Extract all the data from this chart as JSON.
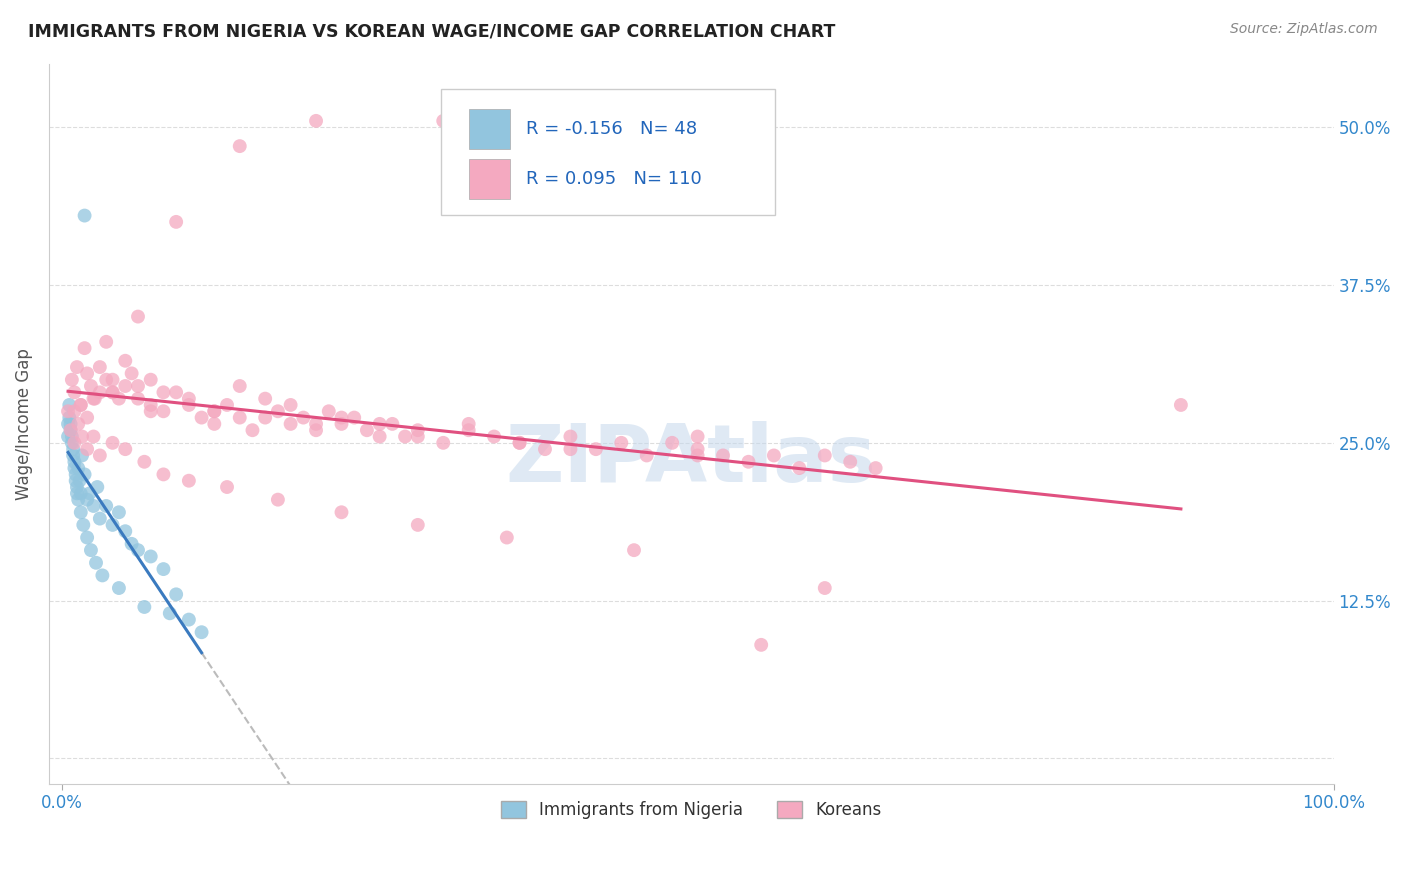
{
  "title": "IMMIGRANTS FROM NIGERIA VS KOREAN WAGE/INCOME GAP CORRELATION CHART",
  "source": "Source: ZipAtlas.com",
  "ylabel": "Wage/Income Gap",
  "R1": "-0.156",
  "N1": "48",
  "R2": "0.095",
  "N2": "110",
  "color_nigeria": "#92c5de",
  "color_korea": "#f4a9c0",
  "color_trendline_nigeria": "#3a7abf",
  "color_trendline_korea": "#e05080",
  "watermark": "ZIPAtlas",
  "legend_label1": "Immigrants from Nigeria",
  "legend_label2": "Koreans",
  "nigeria_x": [
    0.5,
    0.5,
    0.6,
    0.7,
    0.8,
    0.9,
    1.0,
    1.1,
    1.2,
    1.3,
    1.4,
    1.5,
    1.6,
    1.8,
    2.0,
    2.2,
    2.5,
    2.8,
    3.0,
    3.5,
    4.0,
    4.5,
    5.0,
    5.5,
    6.0,
    7.0,
    8.0,
    9.0,
    10.0,
    11.0,
    0.6,
    0.7,
    0.8,
    0.9,
    1.0,
    1.1,
    1.2,
    1.3,
    1.5,
    1.7,
    2.0,
    2.3,
    2.7,
    3.2,
    4.5,
    6.5,
    8.5,
    1.8
  ],
  "nigeria_y": [
    26.5,
    25.5,
    27.0,
    26.0,
    25.0,
    24.5,
    23.0,
    22.5,
    21.5,
    23.0,
    22.0,
    21.0,
    24.0,
    22.5,
    20.5,
    21.0,
    20.0,
    21.5,
    19.0,
    20.0,
    18.5,
    19.5,
    18.0,
    17.0,
    16.5,
    16.0,
    15.0,
    13.0,
    11.0,
    10.0,
    28.0,
    26.5,
    25.5,
    24.0,
    23.5,
    22.0,
    21.0,
    20.5,
    19.5,
    18.5,
    17.5,
    16.5,
    15.5,
    14.5,
    13.5,
    12.0,
    11.5,
    43.0
  ],
  "korea_x": [
    0.5,
    0.8,
    1.0,
    1.2,
    1.5,
    1.8,
    2.0,
    2.3,
    2.6,
    3.0,
    3.5,
    4.0,
    4.5,
    5.0,
    5.5,
    6.0,
    7.0,
    8.0,
    9.0,
    10.0,
    11.0,
    12.0,
    13.0,
    14.0,
    15.0,
    16.0,
    17.0,
    18.0,
    19.0,
    20.0,
    21.0,
    22.0,
    23.0,
    24.0,
    25.0,
    26.0,
    27.0,
    28.0,
    30.0,
    32.0,
    34.0,
    36.0,
    38.0,
    40.0,
    42.0,
    44.0,
    46.0,
    48.0,
    50.0,
    52.0,
    54.0,
    56.0,
    58.0,
    60.0,
    62.0,
    64.0,
    1.0,
    1.5,
    2.0,
    2.5,
    3.0,
    4.0,
    5.0,
    6.0,
    7.0,
    8.0,
    10.0,
    12.0,
    14.0,
    16.0,
    18.0,
    20.0,
    22.0,
    25.0,
    28.0,
    32.0,
    36.0,
    40.0,
    50.0,
    60.0,
    0.7,
    1.0,
    1.3,
    1.6,
    2.0,
    2.5,
    3.0,
    4.0,
    5.0,
    6.5,
    8.0,
    10.0,
    13.0,
    17.0,
    22.0,
    28.0,
    35.0,
    45.0,
    55.0,
    88.0,
    3.5,
    6.0,
    9.0,
    14.0,
    20.0,
    30.0,
    4.0,
    7.0,
    12.0,
    50.0
  ],
  "korea_y": [
    27.5,
    30.0,
    29.0,
    31.0,
    28.0,
    32.5,
    30.5,
    29.5,
    28.5,
    31.0,
    30.0,
    29.0,
    28.5,
    31.5,
    30.5,
    29.5,
    28.0,
    27.5,
    29.0,
    28.5,
    27.0,
    26.5,
    28.0,
    27.0,
    26.0,
    28.5,
    27.5,
    26.5,
    27.0,
    26.0,
    27.5,
    26.5,
    27.0,
    26.0,
    25.5,
    26.5,
    25.5,
    26.0,
    25.0,
    26.5,
    25.5,
    25.0,
    24.5,
    25.5,
    24.5,
    25.0,
    24.0,
    25.0,
    24.5,
    24.0,
    23.5,
    24.0,
    23.0,
    24.0,
    23.5,
    23.0,
    27.5,
    28.0,
    27.0,
    28.5,
    29.0,
    30.0,
    29.5,
    28.5,
    27.5,
    29.0,
    28.0,
    27.5,
    29.5,
    27.0,
    28.0,
    26.5,
    27.0,
    26.5,
    25.5,
    26.0,
    25.0,
    24.5,
    24.0,
    13.5,
    26.0,
    25.0,
    26.5,
    25.5,
    24.5,
    25.5,
    24.0,
    25.0,
    24.5,
    23.5,
    22.5,
    22.0,
    21.5,
    20.5,
    19.5,
    18.5,
    17.5,
    16.5,
    9.0,
    28.0,
    33.0,
    35.0,
    42.5,
    48.5,
    50.5,
    50.5,
    29.0,
    30.0,
    27.5,
    25.5
  ]
}
